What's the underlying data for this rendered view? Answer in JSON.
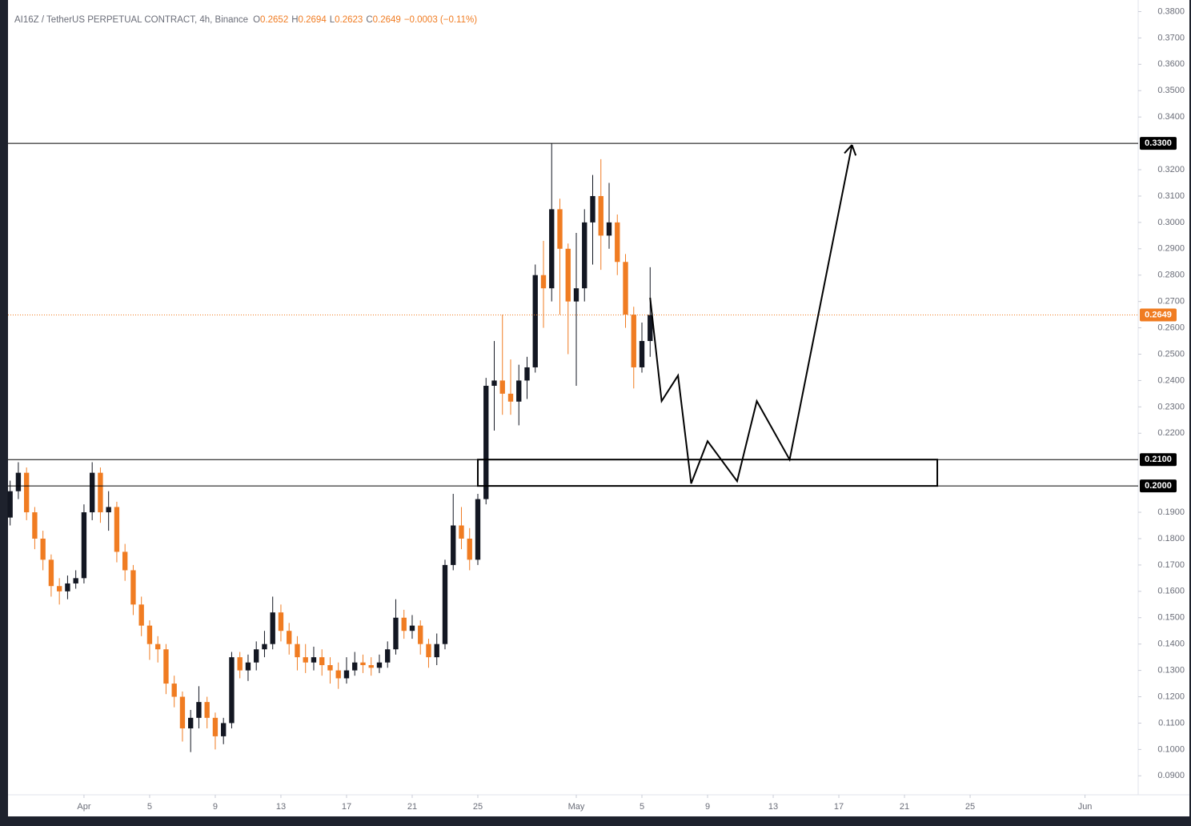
{
  "chart_data": {
    "type": "candlestick",
    "legend": {
      "title": "AI16Z / TetherUS PERPETUAL CONTRACT, 4h, Binance",
      "items": [
        {
          "key": "O",
          "value": "0.2652"
        },
        {
          "key": "H",
          "value": "0.2694"
        },
        {
          "key": "L",
          "value": "0.2623"
        },
        {
          "key": "C",
          "value": "0.2649"
        }
      ],
      "change": "−0.0003 (−0.11%)"
    },
    "up_color": "#131722",
    "down_color": "#f07c22",
    "x": [
      -4.5,
      -4,
      -3.5,
      -3,
      -2.5,
      -2,
      -1.5,
      -1,
      -0.5,
      0,
      0.5,
      1,
      1.5,
      2,
      2.5,
      3,
      3.5,
      4,
      4.5,
      5,
      5.5,
      6,
      6.5,
      7,
      7.5,
      8,
      8.5,
      9,
      9.5,
      10,
      10.5,
      11,
      11.5,
      12,
      12.5,
      13,
      13.5,
      14,
      14.5,
      15,
      15.5,
      16,
      16.5,
      17,
      17.5,
      18,
      18.5,
      19,
      19.5,
      20,
      20.5,
      21,
      21.5,
      22,
      22.5,
      23,
      23.5,
      24,
      24.5,
      25,
      25.5,
      26,
      26.5,
      27,
      27.5,
      28,
      28.5,
      29,
      29.5,
      30,
      30.5,
      31,
      31.5,
      32,
      32.5,
      33,
      33.5,
      34,
      34.5
    ],
    "open": [
      0.188,
      0.198,
      0.205,
      0.19,
      0.18,
      0.172,
      0.162,
      0.16,
      0.163,
      0.165,
      0.19,
      0.205,
      0.19,
      0.192,
      0.175,
      0.168,
      0.155,
      0.147,
      0.14,
      0.138,
      0.125,
      0.12,
      0.108,
      0.112,
      0.118,
      0.112,
      0.105,
      0.11,
      0.135,
      0.13,
      0.133,
      0.138,
      0.14,
      0.152,
      0.145,
      0.14,
      0.135,
      0.133,
      0.135,
      0.132,
      0.13,
      0.127,
      0.13,
      0.133,
      0.132,
      0.131,
      0.133,
      0.138,
      0.15,
      0.145,
      0.147,
      0.14,
      0.135,
      0.14,
      0.17,
      0.185,
      0.18,
      0.172,
      0.195,
      0.238,
      0.24,
      0.235,
      0.232,
      0.24,
      0.245,
      0.28,
      0.275,
      0.305,
      0.29,
      0.27,
      0.275,
      0.3,
      0.31,
      0.295,
      0.3,
      0.285,
      0.265,
      0.245,
      0.255
    ],
    "high": [
      0.202,
      0.209,
      0.207,
      0.192,
      0.183,
      0.174,
      0.165,
      0.166,
      0.168,
      0.193,
      0.209,
      0.207,
      0.198,
      0.194,
      0.178,
      0.17,
      0.158,
      0.149,
      0.143,
      0.14,
      0.128,
      0.122,
      0.115,
      0.124,
      0.12,
      0.114,
      0.112,
      0.137,
      0.137,
      0.136,
      0.141,
      0.145,
      0.158,
      0.155,
      0.148,
      0.143,
      0.14,
      0.139,
      0.138,
      0.135,
      0.133,
      0.135,
      0.137,
      0.136,
      0.135,
      0.136,
      0.141,
      0.157,
      0.153,
      0.151,
      0.149,
      0.142,
      0.144,
      0.172,
      0.197,
      0.192,
      0.184,
      0.197,
      0.241,
      0.255,
      0.265,
      0.248,
      0.246,
      0.249,
      0.284,
      0.293,
      0.33,
      0.309,
      0.292,
      0.296,
      0.305,
      0.318,
      0.324,
      0.315,
      0.303,
      0.288,
      0.268,
      0.262,
      0.283
    ],
    "low": [
      0.185,
      0.195,
      0.187,
      0.176,
      0.168,
      0.158,
      0.155,
      0.157,
      0.161,
      0.163,
      0.187,
      0.186,
      0.183,
      0.171,
      0.164,
      0.151,
      0.143,
      0.134,
      0.133,
      0.121,
      0.116,
      0.103,
      0.099,
      0.108,
      0.108,
      0.1,
      0.102,
      0.108,
      0.127,
      0.126,
      0.13,
      0.135,
      0.138,
      0.141,
      0.136,
      0.13,
      0.129,
      0.13,
      0.128,
      0.125,
      0.123,
      0.125,
      0.128,
      0.129,
      0.128,
      0.129,
      0.131,
      0.136,
      0.142,
      0.142,
      0.136,
      0.131,
      0.132,
      0.138,
      0.168,
      0.176,
      0.168,
      0.17,
      0.193,
      0.221,
      0.227,
      0.227,
      0.223,
      0.233,
      0.243,
      0.26,
      0.27,
      0.265,
      0.25,
      0.238,
      0.27,
      0.284,
      0.282,
      0.29,
      0.28,
      0.26,
      0.237,
      0.243,
      0.249
    ],
    "close": [
      0.198,
      0.205,
      0.19,
      0.18,
      0.172,
      0.162,
      0.16,
      0.163,
      0.165,
      0.19,
      0.205,
      0.19,
      0.192,
      0.175,
      0.168,
      0.155,
      0.147,
      0.14,
      0.138,
      0.125,
      0.12,
      0.108,
      0.112,
      0.118,
      0.112,
      0.105,
      0.11,
      0.135,
      0.13,
      0.133,
      0.138,
      0.14,
      0.152,
      0.145,
      0.14,
      0.135,
      0.133,
      0.135,
      0.132,
      0.13,
      0.127,
      0.13,
      0.133,
      0.132,
      0.131,
      0.133,
      0.138,
      0.15,
      0.145,
      0.147,
      0.14,
      0.135,
      0.14,
      0.17,
      0.185,
      0.18,
      0.172,
      0.195,
      0.238,
      0.24,
      0.235,
      0.232,
      0.24,
      0.245,
      0.28,
      0.275,
      0.305,
      0.29,
      0.27,
      0.275,
      0.3,
      0.31,
      0.295,
      0.3,
      0.285,
      0.265,
      0.245,
      0.255,
      0.2649
    ],
    "xlim": [
      -4.63,
      64.24
    ],
    "ylim": [
      0.0828,
      0.3844
    ],
    "xticks": [
      {
        "value": 0,
        "label": "Apr"
      },
      {
        "value": 4,
        "label": "5"
      },
      {
        "value": 8,
        "label": "9"
      },
      {
        "value": 12,
        "label": "13"
      },
      {
        "value": 16,
        "label": "17"
      },
      {
        "value": 20,
        "label": "21"
      },
      {
        "value": 24,
        "label": "25"
      },
      {
        "value": 30,
        "label": "May"
      },
      {
        "value": 34,
        "label": "5"
      },
      {
        "value": 38,
        "label": "9"
      },
      {
        "value": 42,
        "label": "13"
      },
      {
        "value": 46,
        "label": "17"
      },
      {
        "value": 50,
        "label": "21"
      },
      {
        "value": 54,
        "label": "25"
      },
      {
        "value": 61,
        "label": "Jun"
      }
    ],
    "yticks": [
      {
        "value": 0.38,
        "label": "0.3800"
      },
      {
        "value": 0.37,
        "label": "0.3700"
      },
      {
        "value": 0.36,
        "label": "0.3600"
      },
      {
        "value": 0.35,
        "label": "0.3500"
      },
      {
        "value": 0.34,
        "label": "0.3400"
      },
      {
        "value": 0.32,
        "label": "0.3200"
      },
      {
        "value": 0.31,
        "label": "0.3100"
      },
      {
        "value": 0.3,
        "label": "0.3000"
      },
      {
        "value": 0.29,
        "label": "0.2900"
      },
      {
        "value": 0.28,
        "label": "0.2800"
      },
      {
        "value": 0.27,
        "label": "0.2700"
      },
      {
        "value": 0.26,
        "label": "0.2600"
      },
      {
        "value": 0.25,
        "label": "0.2500"
      },
      {
        "value": 0.24,
        "label": "0.2400"
      },
      {
        "value": 0.23,
        "label": "0.2300"
      },
      {
        "value": 0.22,
        "label": "0.2200"
      },
      {
        "value": 0.19,
        "label": "0.1900"
      },
      {
        "value": 0.18,
        "label": "0.1800"
      },
      {
        "value": 0.17,
        "label": "0.1700"
      },
      {
        "value": 0.16,
        "label": "0.1600"
      },
      {
        "value": 0.15,
        "label": "0.1500"
      },
      {
        "value": 0.14,
        "label": "0.1400"
      },
      {
        "value": 0.13,
        "label": "0.1300"
      },
      {
        "value": 0.12,
        "label": "0.1200"
      },
      {
        "value": 0.11,
        "label": "0.1100"
      },
      {
        "value": 0.1,
        "label": "0.1000"
      },
      {
        "value": 0.09,
        "label": "0.0900"
      }
    ],
    "levels": [
      {
        "value": 0.33,
        "label": "0.3300"
      },
      {
        "value": 0.21,
        "label": "0.2100"
      },
      {
        "value": 0.2,
        "label": "0.2000"
      }
    ],
    "last_price": {
      "value": 0.2649,
      "label": "0.2649",
      "color": "#f07c22"
    },
    "zone": {
      "x": [
        24,
        52
      ],
      "y": [
        0.2,
        0.21
      ]
    },
    "projection": {
      "x": [
        34.5,
        35.2,
        36.2,
        37.0,
        38.0,
        39.8,
        41.0,
        43.0,
        46.8
      ],
      "y": [
        0.2714,
        0.2322,
        0.2419,
        0.2009,
        0.217,
        0.2018,
        0.2322,
        0.21,
        0.3294
      ]
    }
  }
}
